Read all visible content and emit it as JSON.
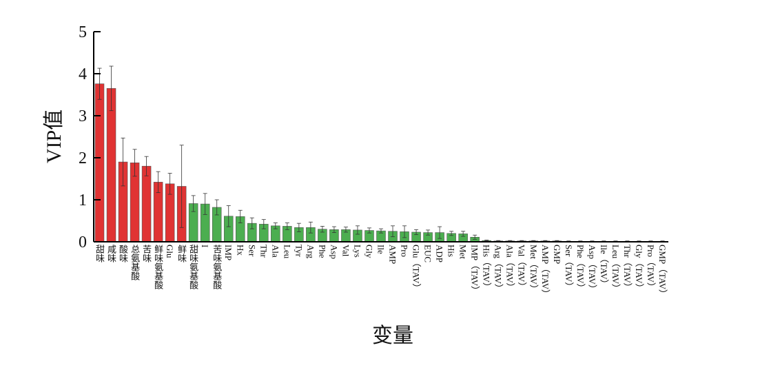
{
  "chart_data": {
    "type": "bar",
    "xlabel": "变量",
    "ylabel": "VIP值",
    "categories": [
      "甜味",
      "咸味",
      "酸味",
      "总氨基酸",
      "苦味",
      "鲜味氨基酸",
      "Glu",
      "鲜味",
      "甜味氨基酸",
      "I",
      "苦味氨基酸",
      "IMP",
      "Hx",
      "Ser",
      "Thr",
      "Ala",
      "Leu",
      "Tyr",
      "Arg",
      "Phe",
      "Asp",
      "Val",
      "Lys",
      "Gly",
      "Ile",
      "AMP",
      "Pro",
      "Glu（TAV）",
      "EUC",
      "ADP",
      "His",
      "Met",
      "IMP（TAV）",
      "His（TAV）",
      "Arg（TAV）",
      "Ala（TAV）",
      "Val（TAV）",
      "Met（TAV）",
      "AMP（TAV）",
      "GMP",
      "Ser（TAV）",
      "Phe（TAV）",
      "Asp（TAV）",
      "Ile（TAV）",
      "Leu（TAV）",
      "Thr（TAV）",
      "Gly（TAV）",
      "Pro（TAV）",
      "GMP（TAV）"
    ],
    "values": [
      3.76,
      3.65,
      1.9,
      1.88,
      1.8,
      1.42,
      1.38,
      1.32,
      0.91,
      0.9,
      0.82,
      0.61,
      0.6,
      0.44,
      0.42,
      0.38,
      0.37,
      0.34,
      0.34,
      0.3,
      0.29,
      0.29,
      0.28,
      0.27,
      0.26,
      0.25,
      0.24,
      0.23,
      0.22,
      0.22,
      0.2,
      0.19,
      0.11,
      0.03,
      0.02,
      0.02,
      0.02,
      0.02,
      0.02,
      0.02,
      0.01,
      0.01,
      0.01,
      0.01,
      0.01,
      0.01,
      0.01,
      0.01,
      0.01
    ],
    "errors": [
      0.37,
      0.53,
      0.57,
      0.32,
      0.23,
      0.25,
      0.25,
      0.98,
      0.19,
      0.25,
      0.18,
      0.25,
      0.15,
      0.13,
      0.11,
      0.07,
      0.08,
      0.1,
      0.13,
      0.07,
      0.07,
      0.06,
      0.1,
      0.06,
      0.05,
      0.13,
      0.14,
      0.06,
      0.06,
      0.14,
      0.05,
      0.06,
      0.05,
      0.01,
      0.01,
      0.01,
      0.01,
      0.01,
      0.01,
      0.01,
      0.01,
      0.01,
      0.01,
      0.01,
      0.01,
      0.01,
      0.01,
      0.01,
      0.01
    ],
    "colors": [
      "#e03333",
      "#e03333",
      "#e03333",
      "#e03333",
      "#e03333",
      "#e03333",
      "#e03333",
      "#e03333",
      "#4cae50",
      "#4cae50",
      "#4cae50",
      "#4cae50",
      "#4cae50",
      "#4cae50",
      "#4cae50",
      "#4cae50",
      "#4cae50",
      "#4cae50",
      "#4cae50",
      "#4cae50",
      "#4cae50",
      "#4cae50",
      "#4cae50",
      "#4cae50",
      "#4cae50",
      "#4cae50",
      "#4cae50",
      "#4cae50",
      "#4cae50",
      "#4cae50",
      "#4cae50",
      "#4cae50",
      "#4cae50",
      "#4cae50",
      "#4cae50",
      "#4cae50",
      "#4cae50",
      "#4cae50",
      "#4cae50",
      "#4cae50",
      "#4cae50",
      "#4cae50",
      "#4cae50",
      "#4cae50",
      "#4cae50",
      "#4cae50",
      "#4cae50",
      "#4cae50",
      "#4cae50"
    ],
    "ylim": [
      0,
      5
    ],
    "yticks": [
      0,
      1,
      2,
      3,
      4,
      5
    ]
  }
}
